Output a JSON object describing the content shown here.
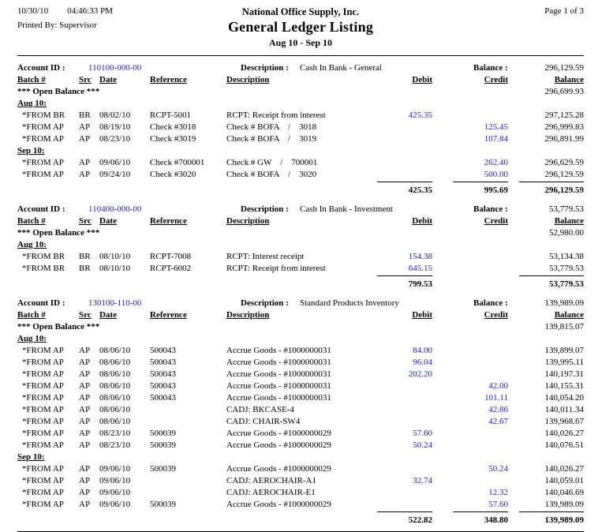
{
  "header": {
    "date": "10/30/10",
    "time": "04:46:33 PM",
    "printed_by": "Printed By: Supervisor",
    "company": "National Office Supply, Inc.",
    "title": "General Ledger Listing",
    "period": "Aug 10 - Sep 10",
    "page": "Page 1 of 3"
  },
  "labels": {
    "account_id": "Account ID :",
    "description": "Description :",
    "balance": "Balance :",
    "open_balance": "*** Open Balance ***"
  },
  "columns": [
    "Batch #",
    "Src",
    "Date",
    "Reference",
    "Description",
    "Debit",
    "Credit",
    "Balance"
  ],
  "colors": {
    "amount_link_blue": "#2222CC",
    "text": "#000000",
    "background": "#FFFFFF"
  },
  "accounts": [
    {
      "id": "110100-000-00",
      "description": "Cash In Bank - General",
      "balance": "296,129.59",
      "open_balance": "296,699.93",
      "groups": [
        {
          "label": "Aug 10:",
          "rows": [
            {
              "batch": "*FROM BR",
              "src": "BR",
              "date": "08/02/10",
              "reference": "RCPT-5001",
              "description": "RCPT: Receipt from interest",
              "debit": "425.35",
              "credit": "",
              "balance": "297,125.28"
            },
            {
              "batch": "*FROM AP",
              "src": "AP",
              "date": "08/19/10",
              "reference": "Check #3018",
              "description": "Check # BOFA    /    3018",
              "debit": "",
              "credit": "125.45",
              "balance": "296,999.83"
            },
            {
              "batch": "*FROM AP",
              "src": "AP",
              "date": "08/23/10",
              "reference": "Check #3019",
              "description": "Check # BOFA    /    3019",
              "debit": "",
              "credit": "107.84",
              "balance": "296,891.99"
            }
          ]
        },
        {
          "label": "Sep 10:",
          "rows": [
            {
              "batch": "*FROM AP",
              "src": "AP",
              "date": "09/06/10",
              "reference": "Check #700001",
              "description": "Check # GW    /    700001",
              "debit": "",
              "credit": "262.40",
              "balance": "296,629.59"
            },
            {
              "batch": "*FROM AP",
              "src": "AP",
              "date": "09/24/10",
              "reference": "Check #3020",
              "description": "Check # BOFA    /    3020",
              "debit": "",
              "credit": "500.00",
              "balance": "296,129.59"
            }
          ]
        }
      ],
      "totals": {
        "debit": "425.35",
        "credit": "995.69",
        "balance": "296,129.59"
      }
    },
    {
      "id": "110400-000-00",
      "description": "Cash In Bank - Investment",
      "balance": "53,779.53",
      "open_balance": "52,980.00",
      "groups": [
        {
          "label": "Aug 10:",
          "rows": [
            {
              "batch": "*FROM BR",
              "src": "BR",
              "date": "08/10/10",
              "reference": "RCPT-7008",
              "description": "RCPT: Interest receipt",
              "debit": "154.38",
              "credit": "",
              "balance": "53,134.38"
            },
            {
              "batch": "*FROM BR",
              "src": "BR",
              "date": "08/10/10",
              "reference": "RCPT-6002",
              "description": "RCPT: Receipt from interest",
              "debit": "645.15",
              "credit": "",
              "balance": "53,779.53"
            }
          ]
        }
      ],
      "totals": {
        "debit": "799.53",
        "credit": "",
        "balance": "53,779.53"
      }
    },
    {
      "id": "130100-110-00",
      "description": "Standard Products Inventory",
      "balance": "139,989.09",
      "open_balance": "139,815.07",
      "groups": [
        {
          "label": "Aug 10:",
          "rows": [
            {
              "batch": "*FROM AP",
              "src": "AP",
              "date": "08/06/10",
              "reference": "500043",
              "description": "Accrue Goods - #1000000031",
              "debit": "84.00",
              "credit": "",
              "balance": "139,899.07"
            },
            {
              "batch": "*FROM AP",
              "src": "AP",
              "date": "08/06/10",
              "reference": "500043",
              "description": "Accrue Goods - #1000000031",
              "debit": "96.04",
              "credit": "",
              "balance": "139,995.11"
            },
            {
              "batch": "*FROM AP",
              "src": "AP",
              "date": "08/06/10",
              "reference": "500043",
              "description": "Accrue Goods - #1000000031",
              "debit": "202.20",
              "credit": "",
              "balance": "140,197.31"
            },
            {
              "batch": "*FROM AP",
              "src": "AP",
              "date": "08/06/10",
              "reference": "500043",
              "description": "Accrue Goods - #1000000031",
              "debit": "",
              "credit": "42.00",
              "balance": "140,155.31"
            },
            {
              "batch": "*FROM AP",
              "src": "AP",
              "date": "08/06/10",
              "reference": "500043",
              "description": "Accrue Goods - #1000000031",
              "debit": "",
              "credit": "101.11",
              "balance": "140,054.20"
            },
            {
              "batch": "*FROM AP",
              "src": "AP",
              "date": "08/06/10",
              "reference": "",
              "description": "CADJ: BKCASE-4",
              "debit": "",
              "credit": "42.86",
              "balance": "140,011.34"
            },
            {
              "batch": "*FROM AP",
              "src": "AP",
              "date": "08/06/10",
              "reference": "",
              "description": "CADJ: CHAIR-SW4",
              "debit": "",
              "credit": "42.67",
              "balance": "139,968.67"
            },
            {
              "batch": "*FROM AP",
              "src": "AP",
              "date": "08/23/10",
              "reference": "500039",
              "description": "Accrue Goods - #1000000029",
              "debit": "57.60",
              "credit": "",
              "balance": "140,026.27"
            },
            {
              "batch": "*FROM AP",
              "src": "AP",
              "date": "08/23/10",
              "reference": "500039",
              "description": "Accrue Goods - #1000000029",
              "debit": "50.24",
              "credit": "",
              "balance": "140,076.51"
            }
          ]
        },
        {
          "label": "Sep 10:",
          "rows": [
            {
              "batch": "*FROM AP",
              "src": "AP",
              "date": "09/06/10",
              "reference": "500039",
              "description": "Accrue Goods - #1000000029",
              "debit": "",
              "credit": "50.24",
              "balance": "140,026.27"
            },
            {
              "batch": "*FROM AP",
              "src": "AP",
              "date": "09/06/10",
              "reference": "",
              "description": "CADJ: AEROCHAIR-A1",
              "debit": "32.74",
              "credit": "",
              "balance": "140,059.01"
            },
            {
              "batch": "*FROM AP",
              "src": "AP",
              "date": "09/06/10",
              "reference": "",
              "description": "CADJ: AEROCHAIR-E1",
              "debit": "",
              "credit": "12.32",
              "balance": "140,046.69"
            },
            {
              "batch": "*FROM AP",
              "src": "AP",
              "date": "09/06/10",
              "reference": "500039",
              "description": "Accrue Goods - #1000000029",
              "debit": "",
              "credit": "57.60",
              "balance": "139,989.09"
            }
          ]
        }
      ],
      "totals": {
        "debit": "522.82",
        "credit": "348.80",
        "balance": "139,989.09"
      }
    }
  ]
}
